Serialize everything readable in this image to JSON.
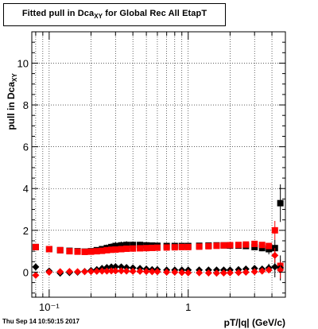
{
  "title_main": "Fitted pull in Dca",
  "title_sub": "XY",
  "title_rest": " for Global Rec All EtapT",
  "timestamp": "Thu Sep 14 10:50:15 2017",
  "chart_data": {
    "type": "scatter",
    "xlabel": "pT/|q| (GeV/c)",
    "ylabel_main": "pull in Dca",
    "ylabel_sub": "XY",
    "xscale": "log",
    "xlim": [
      0.075,
      5.0
    ],
    "ylim": [
      -1.2,
      11.5
    ],
    "grid": true,
    "x_major_ticks": [
      0.1,
      1
    ],
    "x_tick_labels": [
      "10⁻¹",
      "1"
    ],
    "y_ticks": [
      0,
      2,
      4,
      6,
      8,
      10
    ],
    "y_tick_labels": [
      "0",
      "2",
      "4",
      "6",
      "8",
      "10"
    ],
    "series": [
      {
        "color": "#000000",
        "marker": "square",
        "x": [
          0.08,
          0.1,
          0.12,
          0.14,
          0.16,
          0.18,
          0.2,
          0.22,
          0.24,
          0.26,
          0.28,
          0.3,
          0.33,
          0.36,
          0.4,
          0.45,
          0.5,
          0.55,
          0.6,
          0.7,
          0.8,
          0.9,
          1.0,
          1.2,
          1.4,
          1.6,
          1.8,
          2.0,
          2.3,
          2.6,
          3.0,
          3.4,
          3.8,
          4.2,
          4.6
        ],
        "y": [
          1.2,
          1.1,
          1.05,
          1.02,
          1.0,
          0.98,
          1.0,
          1.05,
          1.1,
          1.15,
          1.2,
          1.25,
          1.28,
          1.3,
          1.3,
          1.3,
          1.28,
          1.27,
          1.26,
          1.25,
          1.25,
          1.25,
          1.25,
          1.26,
          1.27,
          1.28,
          1.28,
          1.27,
          1.27,
          1.25,
          1.2,
          1.15,
          1.1,
          1.15,
          3.3
        ],
        "err": [
          0.12,
          0.08,
          0.08,
          0.08,
          0.08,
          0.1,
          0.12,
          0.13,
          0.15,
          0.17,
          0.18,
          0.18,
          0.18,
          0.18,
          0.17,
          0.15,
          0.13,
          0.12,
          0.1,
          0.1,
          0.08,
          0.08,
          0.08,
          0.08,
          0.08,
          0.08,
          0.08,
          0.08,
          0.08,
          0.08,
          0.1,
          0.15,
          0.25,
          0.4,
          0.9
        ]
      },
      {
        "color": "#ff0000",
        "marker": "square",
        "x": [
          0.08,
          0.1,
          0.12,
          0.14,
          0.16,
          0.18,
          0.2,
          0.22,
          0.24,
          0.26,
          0.28,
          0.3,
          0.33,
          0.36,
          0.4,
          0.45,
          0.5,
          0.55,
          0.6,
          0.7,
          0.8,
          0.9,
          1.0,
          1.2,
          1.4,
          1.6,
          1.8,
          2.0,
          2.3,
          2.6,
          3.0,
          3.4,
          3.8,
          4.2,
          4.6
        ],
        "y": [
          1.2,
          1.1,
          1.05,
          1.0,
          0.98,
          0.97,
          0.98,
          1.0,
          1.02,
          1.05,
          1.07,
          1.08,
          1.1,
          1.12,
          1.13,
          1.14,
          1.15,
          1.16,
          1.17,
          1.18,
          1.19,
          1.2,
          1.2,
          1.22,
          1.24,
          1.26,
          1.28,
          1.29,
          1.3,
          1.32,
          1.35,
          1.3,
          1.25,
          2.0,
          0.3
        ],
        "err": [
          0.1,
          0.07,
          0.06,
          0.06,
          0.05,
          0.05,
          0.05,
          0.05,
          0.05,
          0.05,
          0.05,
          0.05,
          0.05,
          0.05,
          0.05,
          0.05,
          0.05,
          0.05,
          0.05,
          0.05,
          0.05,
          0.05,
          0.05,
          0.05,
          0.05,
          0.05,
          0.05,
          0.05,
          0.06,
          0.06,
          0.07,
          0.1,
          0.15,
          0.45,
          0.3
        ]
      },
      {
        "color": "#000000",
        "marker": "diamond",
        "x": [
          0.08,
          0.1,
          0.12,
          0.14,
          0.16,
          0.18,
          0.2,
          0.22,
          0.24,
          0.26,
          0.28,
          0.3,
          0.33,
          0.36,
          0.4,
          0.45,
          0.5,
          0.55,
          0.6,
          0.7,
          0.8,
          0.9,
          1.0,
          1.2,
          1.4,
          1.6,
          1.8,
          2.0,
          2.3,
          2.6,
          3.0,
          3.4,
          3.8,
          4.2,
          4.6
        ],
        "y": [
          0.25,
          0.05,
          -0.05,
          -0.02,
          0.0,
          0.03,
          0.08,
          0.12,
          0.18,
          0.22,
          0.25,
          0.26,
          0.25,
          0.22,
          0.2,
          0.18,
          0.15,
          0.12,
          0.12,
          0.1,
          0.1,
          0.1,
          0.1,
          0.1,
          0.1,
          0.1,
          0.1,
          0.1,
          0.12,
          0.15,
          0.18,
          0.15,
          0.2,
          0.25,
          0.2
        ],
        "err": [
          0.08,
          0.06,
          0.06,
          0.06,
          0.06,
          0.07,
          0.08,
          0.09,
          0.1,
          0.12,
          0.12,
          0.12,
          0.12,
          0.11,
          0.1,
          0.09,
          0.08,
          0.07,
          0.07,
          0.06,
          0.06,
          0.06,
          0.06,
          0.06,
          0.06,
          0.06,
          0.06,
          0.06,
          0.06,
          0.07,
          0.08,
          0.12,
          0.2,
          0.5,
          0.6
        ]
      },
      {
        "color": "#ff0000",
        "marker": "diamond",
        "x": [
          0.08,
          0.1,
          0.12,
          0.14,
          0.16,
          0.18,
          0.2,
          0.22,
          0.24,
          0.26,
          0.28,
          0.3,
          0.33,
          0.36,
          0.4,
          0.45,
          0.5,
          0.55,
          0.6,
          0.7,
          0.8,
          0.9,
          1.0,
          1.2,
          1.4,
          1.6,
          1.8,
          2.0,
          2.3,
          2.6,
          3.0,
          3.4,
          3.8,
          4.2,
          4.6
        ],
        "y": [
          -0.15,
          0.0,
          0.02,
          0.03,
          0.02,
          0.02,
          0.03,
          0.04,
          0.05,
          0.05,
          0.06,
          0.06,
          0.06,
          0.05,
          0.04,
          0.04,
          0.03,
          0.02,
          0.02,
          0.0,
          0.0,
          -0.02,
          -0.03,
          -0.03,
          -0.04,
          -0.05,
          -0.04,
          -0.03,
          -0.02,
          0.0,
          0.02,
          0.05,
          0.1,
          0.8,
          0.1
        ],
        "err": [
          0.08,
          0.05,
          0.04,
          0.04,
          0.04,
          0.04,
          0.04,
          0.04,
          0.04,
          0.04,
          0.04,
          0.04,
          0.04,
          0.04,
          0.04,
          0.04,
          0.04,
          0.04,
          0.04,
          0.04,
          0.04,
          0.04,
          0.04,
          0.04,
          0.04,
          0.04,
          0.04,
          0.04,
          0.05,
          0.05,
          0.06,
          0.08,
          0.12,
          0.35,
          0.4
        ]
      }
    ]
  }
}
